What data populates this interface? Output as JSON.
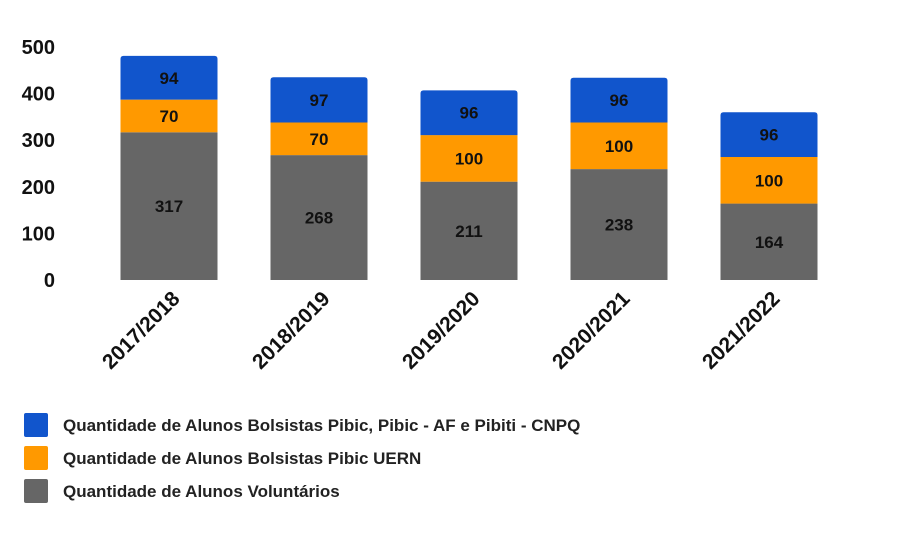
{
  "chart_data": {
    "type": "bar",
    "stacked": true,
    "categories": [
      "2017/2018",
      "2018/2019",
      "2019/2020",
      "2020/2021",
      "2021/2022"
    ],
    "series": [
      {
        "name": "Quantidade de Alunos Voluntários",
        "color": "#666666",
        "values": [
          317,
          268,
          211,
          238,
          164
        ]
      },
      {
        "name": "Quantidade de Alunos Bolsistas Pibic UERN",
        "color": "#ff9900",
        "values": [
          70,
          70,
          100,
          100,
          100
        ]
      },
      {
        "name": "Quantidade de Alunos Bolsistas Pibic, Pibic - AF e Pibiti - CNPQ",
        "color": "#1155cc",
        "values": [
          94,
          97,
          96,
          96,
          96
        ]
      }
    ],
    "legend_order": [
      2,
      1,
      0
    ],
    "yticks": [
      0,
      100,
      200,
      300,
      400,
      500
    ],
    "ylim": [
      0,
      500
    ],
    "grid": false,
    "legend_position": "bottom-left",
    "title": "",
    "xlabel": "",
    "ylabel": ""
  }
}
